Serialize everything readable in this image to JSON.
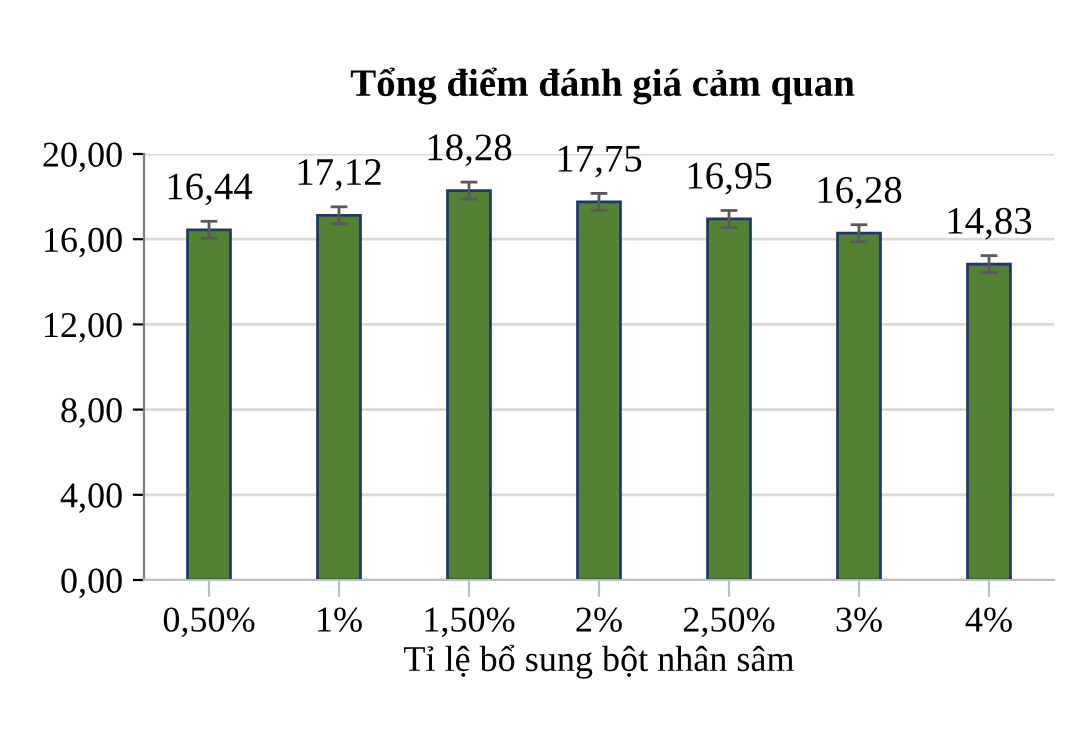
{
  "chart_data": {
    "type": "bar",
    "title": "Tổng điểm đánh giá cảm quan",
    "xlabel": "Tỉ lệ bổ sung bột nhân sâm",
    "categories": [
      "0,50%",
      "1%",
      "1,50%",
      "2%",
      "2,50%",
      "3%",
      "4%"
    ],
    "values": [
      16.44,
      17.12,
      18.28,
      17.75,
      16.95,
      16.28,
      14.83
    ],
    "value_labels": [
      "16,44",
      "17,12",
      "18,28",
      "17,75",
      "16,95",
      "16,28",
      "14,83"
    ],
    "errors": [
      0.4,
      0.4,
      0.4,
      0.4,
      0.4,
      0.4,
      0.4
    ],
    "color": "#548235",
    "ylim": [
      0,
      20
    ],
    "yticks": [
      {
        "value": 0,
        "label": "0,00"
      },
      {
        "value": 4,
        "label": "4,00"
      },
      {
        "value": 8,
        "label": "8,00"
      },
      {
        "value": 12,
        "label": "12,00"
      },
      {
        "value": 16,
        "label": "16,00"
      },
      {
        "value": 20,
        "label": "20,00"
      }
    ],
    "grid": "y",
    "legend": false
  }
}
